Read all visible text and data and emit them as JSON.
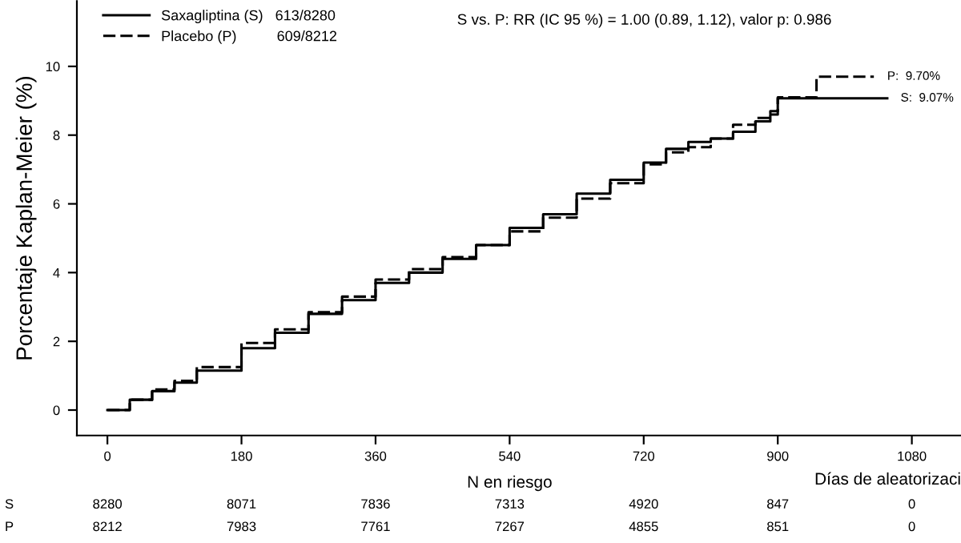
{
  "chart_data": {
    "type": "step",
    "ylabel": "Porcentaje Kaplan-Meier (%)",
    "xlabel": "Días de aleatorizaci",
    "xlim": [
      -41,
      1146
    ],
    "ylim": [
      -0.74,
      11.9
    ],
    "xticks": [
      0,
      180,
      360,
      540,
      720,
      900,
      1080
    ],
    "yticks": [
      0,
      2,
      4,
      6,
      8,
      10
    ],
    "grid": false,
    "legend": "top left",
    "marker": "none",
    "series": [
      {
        "name": "Saxagliptina (S)   613/8280",
        "color": "#000000",
        "line_style": "solid",
        "x": [
          0,
          30,
          60,
          90,
          120,
          180,
          225,
          270,
          315,
          360,
          405,
          450,
          495,
          540,
          585,
          630,
          675,
          720,
          750,
          780,
          810,
          840,
          870,
          890,
          900,
          1047
        ],
        "values": [
          0,
          0.3,
          0.55,
          0.8,
          1.15,
          1.8,
          2.25,
          2.8,
          3.2,
          3.7,
          4.0,
          4.4,
          4.8,
          5.3,
          5.7,
          6.3,
          6.7,
          7.2,
          7.6,
          7.8,
          7.9,
          8.1,
          8.4,
          8.6,
          9.07,
          9.07
        ]
      },
      {
        "name": "Placebo (P)          609/8212",
        "color": "#000000",
        "line_style": "dashed",
        "x": [
          0,
          30,
          60,
          90,
          120,
          180,
          225,
          270,
          315,
          360,
          405,
          450,
          495,
          540,
          585,
          630,
          675,
          720,
          750,
          780,
          810,
          840,
          870,
          890,
          900,
          952,
          1029
        ],
        "values": [
          0,
          0.3,
          0.6,
          0.85,
          1.25,
          1.95,
          2.35,
          2.85,
          3.3,
          3.8,
          4.1,
          4.45,
          4.8,
          5.2,
          5.6,
          6.15,
          6.6,
          7.15,
          7.5,
          7.65,
          7.9,
          8.3,
          8.5,
          8.7,
          9.1,
          9.7,
          9.7
        ]
      }
    ],
    "annotations": [
      {
        "text": "P:  9.70%",
        "x": 1029,
        "y": 9.7
      },
      {
        "text": "S:  9.07%",
        "x": 1047,
        "y": 9.07
      },
      "S vs. P: RR (IC 95 %) = 1.00 (0.89, 1.12), valor p: 0.986",
      "N en riesgo",
      "S",
      "8280",
      "8071",
      "7836",
      "7313",
      "4920",
      "847",
      "0",
      "P",
      "8212",
      "7983",
      "7761",
      "7267",
      "4855",
      "851",
      "0"
    ]
  }
}
